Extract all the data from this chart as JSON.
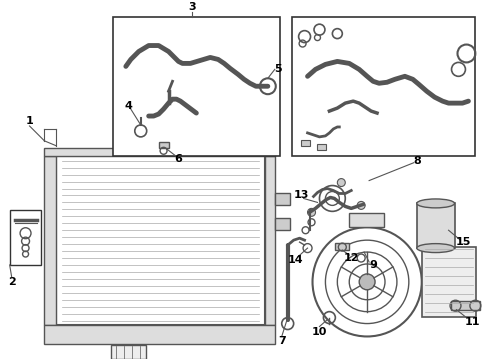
{
  "bg_color": "#ffffff",
  "line_color": "#555555",
  "box_color": "#333333",
  "fig_width": 4.89,
  "fig_height": 3.6,
  "dpi": 100
}
